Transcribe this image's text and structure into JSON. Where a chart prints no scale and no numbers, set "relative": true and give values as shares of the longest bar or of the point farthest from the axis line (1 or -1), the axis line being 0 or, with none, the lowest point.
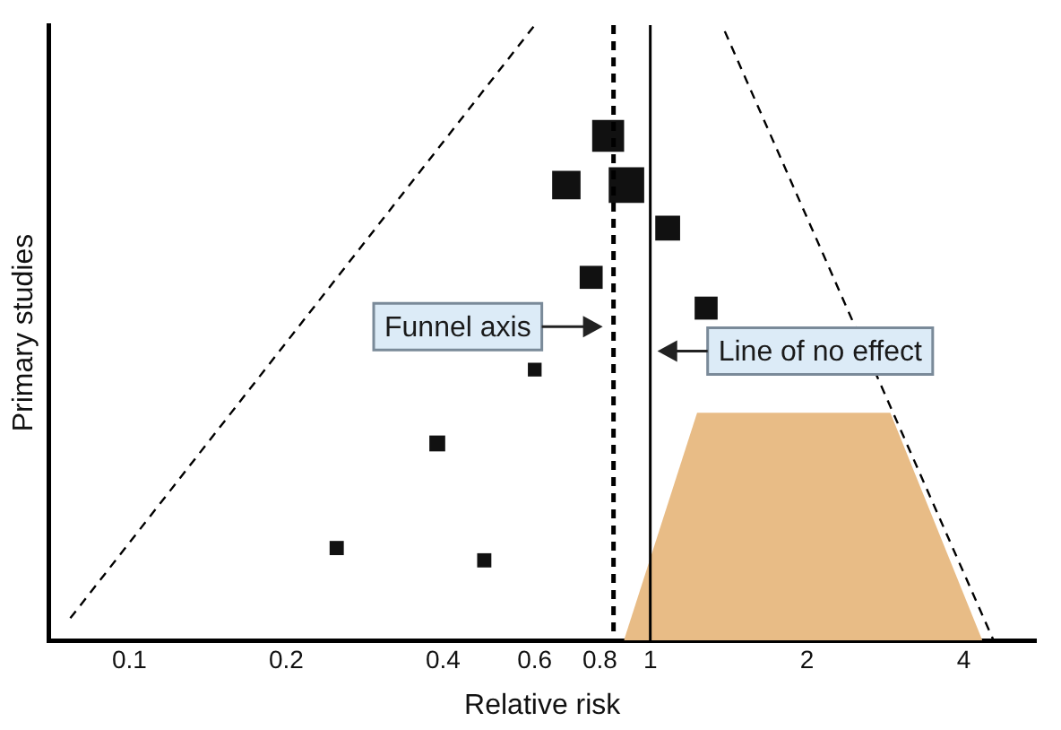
{
  "chart_data": {
    "type": "bubble",
    "xlabel": "Relative risk",
    "ylabel": "Primary studies",
    "relative": true,
    "marker": "square",
    "legend": false,
    "grid": false,
    "log": "x",
    "xlim": [
      0.07,
      5.5
    ],
    "xticks": [
      0.1,
      0.2,
      0.4,
      0.6,
      0.8,
      1,
      2,
      4
    ],
    "series": [
      {
        "type": "area",
        "marker": "none",
        "color": "#e8bc86",
        "x": [
          0.89,
          1.23,
          2.89,
          4.34
        ],
        "values": [
          0,
          0.37,
          0.37,
          0
        ]
      },
      {
        "type": "line",
        "marker": "none",
        "color": "#000000",
        "line_style": "dashed",
        "x": [
          0.077,
          0.6
        ],
        "values": [
          0.036,
          1
        ]
      },
      {
        "type": "line",
        "marker": "none",
        "color": "#000000",
        "line_style": "dashed",
        "x": [
          1.39,
          4.56
        ],
        "values": [
          0.99,
          0
        ]
      },
      {
        "color": "#111111",
        "x": [
          0.83,
          0.69,
          0.9,
          1.08,
          0.77,
          1.28,
          0.6,
          0.39,
          0.25,
          0.48
        ],
        "values": [
          0.82,
          0.74,
          0.74,
          0.67,
          0.59,
          0.54,
          0.44,
          0.32,
          0.15,
          0.13
        ],
        "sizes": [
          0.81,
          0.64,
          1,
          0.49,
          0.42,
          0.42,
          0.15,
          0.2,
          0.16,
          0.16
        ]
      }
    ],
    "ref_lines": [
      {
        "axis": "x",
        "value": 0.85,
        "label": "Funnel axis",
        "line_style": "dashed",
        "color": "#000000"
      },
      {
        "axis": "x",
        "value": 1,
        "label": "Line of no effect",
        "line_style": "solid",
        "color": "#000000"
      }
    ]
  }
}
